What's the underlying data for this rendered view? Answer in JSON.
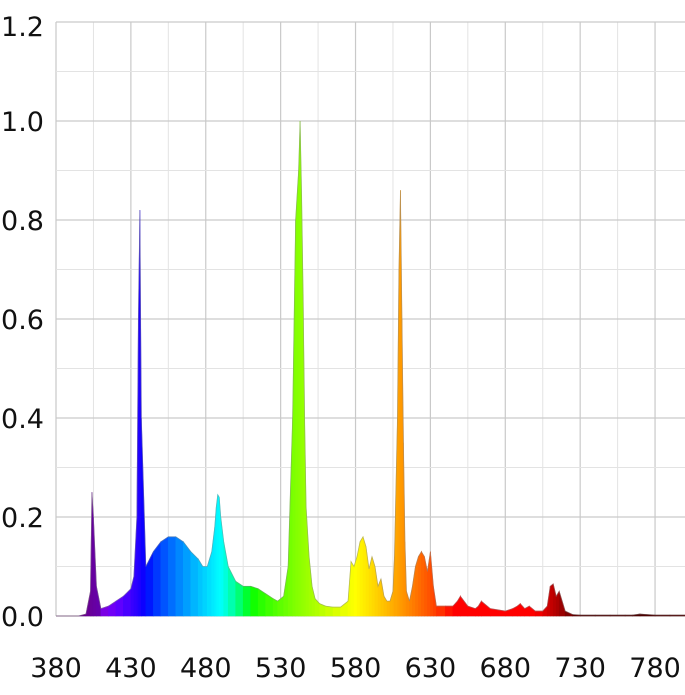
{
  "chart_data": {
    "type": "area",
    "title": "",
    "xlabel": "",
    "ylabel": "",
    "xlim": [
      380,
      800
    ],
    "ylim": [
      0,
      1.2
    ],
    "grid": true,
    "legend": "none",
    "x_ticks": [
      "380",
      "430",
      "480",
      "530",
      "580",
      "630",
      "680",
      "730",
      "780"
    ],
    "y_ticks": [
      "0.0",
      "0.2",
      "0.4",
      "0.6",
      "0.8",
      "1.0",
      "1.2"
    ],
    "coloring": "spectral (violet at 380 through red at 700, dark red beyond)",
    "series": [
      {
        "x": [
          380,
          395,
          400,
          403,
          404,
          405,
          407,
          410,
          415,
          420,
          425,
          430,
          432,
          434,
          435,
          436,
          437,
          440,
          445,
          450,
          455,
          460,
          465,
          470,
          475,
          478,
          481,
          484,
          486,
          487,
          488,
          489,
          490,
          492,
          495,
          500,
          505,
          510,
          515,
          520,
          525,
          528,
          532,
          535,
          538,
          540,
          542,
          543,
          544,
          545,
          546,
          547,
          549,
          551,
          553,
          556,
          560,
          565,
          570,
          575,
          577,
          579,
          581,
          583,
          585,
          587,
          589,
          591,
          593,
          595,
          597,
          599,
          601,
          603,
          605,
          606,
          608,
          609,
          610,
          611,
          612,
          613,
          614,
          616,
          618,
          620,
          622,
          624,
          626,
          628,
          630,
          632,
          634,
          640,
          645,
          648,
          650,
          655,
          660,
          662,
          664,
          670,
          680,
          685,
          688,
          690,
          693,
          696,
          700,
          705,
          708,
          710,
          712,
          714,
          716,
          720,
          725,
          730,
          740,
          750,
          760,
          765,
          770,
          780,
          790,
          800
        ],
        "y": [
          0.0,
          0.0,
          0.004,
          0.05,
          0.25,
          0.2,
          0.06,
          0.015,
          0.02,
          0.03,
          0.04,
          0.055,
          0.08,
          0.2,
          0.6,
          0.82,
          0.4,
          0.1,
          0.13,
          0.15,
          0.16,
          0.16,
          0.15,
          0.13,
          0.115,
          0.1,
          0.1,
          0.13,
          0.18,
          0.22,
          0.245,
          0.24,
          0.2,
          0.15,
          0.1,
          0.07,
          0.06,
          0.06,
          0.055,
          0.045,
          0.035,
          0.03,
          0.04,
          0.1,
          0.4,
          0.8,
          0.9,
          1.0,
          0.85,
          0.65,
          0.4,
          0.22,
          0.12,
          0.06,
          0.035,
          0.025,
          0.02,
          0.018,
          0.018,
          0.03,
          0.11,
          0.1,
          0.12,
          0.15,
          0.16,
          0.14,
          0.095,
          0.12,
          0.1,
          0.06,
          0.075,
          0.04,
          0.03,
          0.03,
          0.05,
          0.12,
          0.4,
          0.7,
          0.86,
          0.6,
          0.35,
          0.15,
          0.05,
          0.03,
          0.06,
          0.1,
          0.12,
          0.13,
          0.12,
          0.09,
          0.13,
          0.06,
          0.02,
          0.02,
          0.02,
          0.03,
          0.04,
          0.02,
          0.015,
          0.02,
          0.03,
          0.015,
          0.01,
          0.015,
          0.02,
          0.025,
          0.015,
          0.02,
          0.01,
          0.01,
          0.02,
          0.06,
          0.065,
          0.04,
          0.05,
          0.01,
          0.003,
          0.002,
          0.002,
          0.002,
          0.002,
          0.002,
          0.004,
          0.002,
          0.002,
          0.002
        ]
      }
    ]
  }
}
